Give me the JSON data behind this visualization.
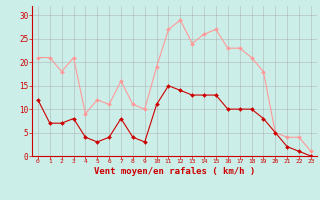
{
  "hours": [
    0,
    1,
    2,
    3,
    4,
    5,
    6,
    7,
    8,
    9,
    10,
    11,
    12,
    13,
    14,
    15,
    16,
    17,
    18,
    19,
    20,
    21,
    22,
    23
  ],
  "wind_avg": [
    12,
    7,
    7,
    8,
    4,
    3,
    4,
    8,
    4,
    3,
    11,
    15,
    14,
    13,
    13,
    13,
    10,
    10,
    10,
    8,
    5,
    2,
    1,
    0
  ],
  "wind_gust": [
    21,
    21,
    18,
    21,
    9,
    12,
    11,
    16,
    11,
    10,
    19,
    27,
    29,
    24,
    26,
    27,
    23,
    23,
    21,
    18,
    5,
    4,
    4,
    1
  ],
  "bg_color": "#cceee8",
  "avg_color": "#cc0000",
  "gust_color": "#ff9999",
  "grid_color": "#aaaaaa",
  "xlabel": "Vent moyen/en rafales ( km/h )",
  "xlabel_color": "#cc0000",
  "tick_color": "#cc0000",
  "axis_color": "#cc0000",
  "ylim": [
    0,
    32
  ],
  "yticks": [
    0,
    5,
    10,
    15,
    20,
    25,
    30
  ]
}
